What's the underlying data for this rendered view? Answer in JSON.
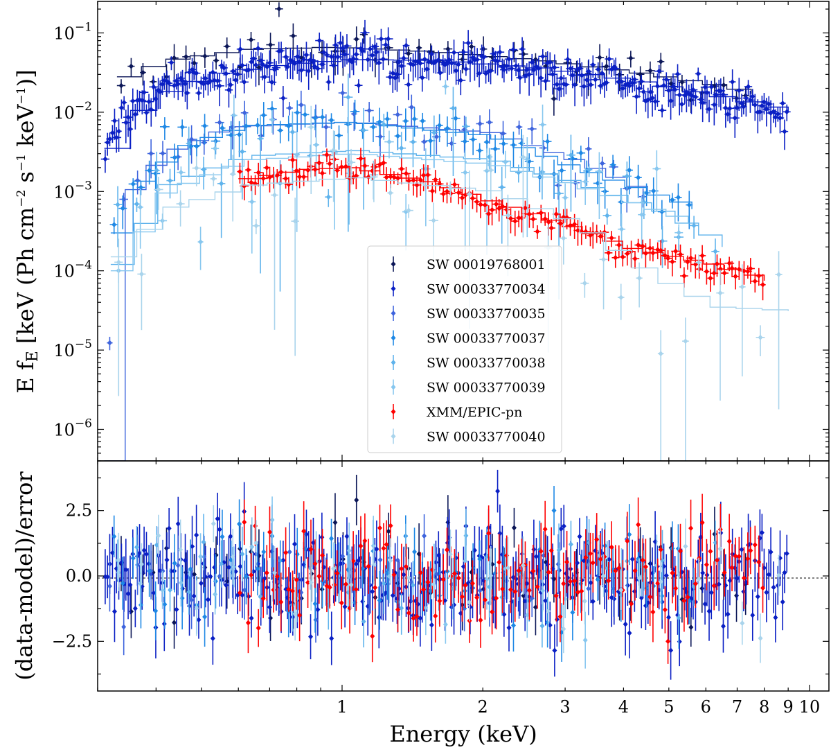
{
  "chart_data": [
    {
      "type": "scatter",
      "panel": "spectrum",
      "ylabel": "E f_E [keV (Ph cm^-2 s^-1 keV^-1)]",
      "xscale": "log",
      "yscale": "log",
      "xlim": [
        0.3,
        11
      ],
      "ylim": [
        4e-07,
        0.25
      ],
      "yticks": [
        {
          "value": 1e-06,
          "base": "10",
          "exp": "−6"
        },
        {
          "value": 1e-05,
          "base": "10",
          "exp": "−5"
        },
        {
          "value": 0.0001,
          "base": "10",
          "exp": "−4"
        },
        {
          "value": 0.001,
          "base": "10",
          "exp": "−3"
        },
        {
          "value": 0.01,
          "base": "10",
          "exp": "−2"
        },
        {
          "value": 0.1,
          "base": "10",
          "exp": "−1"
        }
      ],
      "legend_position": "center",
      "series": [
        {
          "name": "SW 00019768001",
          "color": "#0b1657",
          "norm": 0.058,
          "logSlope": -0.55,
          "scatter": 0.14,
          "xmin": 0.33,
          "xmax": 7.5,
          "n": 60,
          "seed": 11,
          "model": [
            [
              0.33,
              0.028
            ],
            [
              0.4,
              0.045
            ],
            [
              0.6,
              0.062
            ],
            [
              0.9,
              0.066
            ],
            [
              1.5,
              0.058
            ],
            [
              2.5,
              0.045
            ],
            [
              4,
              0.032
            ],
            [
              6,
              0.022
            ],
            [
              7.5,
              0.017
            ]
          ]
        },
        {
          "name": "SW 00033770034",
          "color": "#0a1fc4",
          "norm": 0.046,
          "logSlope": -0.6,
          "scatter": 0.12,
          "xmin": 0.31,
          "xmax": 9.0,
          "n": 300,
          "seed": 23,
          "model": [
            [
              0.31,
              0.0035
            ],
            [
              0.34,
              0.009
            ],
            [
              0.4,
              0.018
            ],
            [
              0.5,
              0.03
            ],
            [
              0.7,
              0.04
            ],
            [
              1,
              0.046
            ],
            [
              1.5,
              0.045
            ],
            [
              2.5,
              0.036
            ],
            [
              4,
              0.025
            ],
            [
              6,
              0.016
            ],
            [
              9,
              0.01
            ]
          ]
        },
        {
          "name": "SW 00033770035",
          "color": "#3e64dd",
          "norm": 0.0068,
          "logSlope": -0.55,
          "scatter": 0.14,
          "xmin": 0.31,
          "xmax": 4.5,
          "n": 40,
          "seed": 37,
          "model": [
            [
              0.31,
              4e-07
            ],
            [
              0.33,
              0.0008
            ],
            [
              0.4,
              0.003
            ],
            [
              0.55,
              0.0065
            ],
            [
              1,
              0.0075
            ],
            [
              2,
              0.0055
            ],
            [
              3,
              0.0025
            ],
            [
              4.5,
              0.0009
            ]
          ]
        },
        {
          "name": "SW 00033770037",
          "color": "#1e88e5",
          "norm": 0.0068,
          "logSlope": -0.6,
          "scatter": 0.14,
          "xmin": 0.32,
          "xmax": 5.6,
          "n": 70,
          "seed": 41,
          "model": [
            [
              0.32,
              0.0003
            ],
            [
              0.36,
              0.0015
            ],
            [
              0.45,
              0.004
            ],
            [
              0.6,
              0.0068
            ],
            [
              1,
              0.0075
            ],
            [
              2,
              0.005
            ],
            [
              3,
              0.002
            ],
            [
              4.5,
              0.0009
            ],
            [
              5.6,
              0.0006
            ]
          ]
        },
        {
          "name": "SW 00033770038",
          "color": "#5fb3ec",
          "norm": 0.0033,
          "logSlope": -0.5,
          "scatter": 0.35,
          "xmin": 0.32,
          "xmax": 6.5,
          "n": 35,
          "seed": 53,
          "model": [
            [
              0.32,
              0.00012
            ],
            [
              0.4,
              0.0012
            ],
            [
              0.6,
              0.0028
            ],
            [
              1,
              0.0033
            ],
            [
              2,
              0.0025
            ],
            [
              3,
              0.0013
            ],
            [
              4.5,
              0.0006
            ],
            [
              6.5,
              0.0002
            ]
          ]
        },
        {
          "name": "SW 00033770039",
          "color": "#87c7ef",
          "norm": 0.003,
          "logSlope": -0.5,
          "scatter": 0.35,
          "xmin": 0.32,
          "xmax": 5.5,
          "n": 30,
          "seed": 67,
          "model": [
            [
              0.32,
              0.0001
            ],
            [
              0.4,
              0.001
            ],
            [
              0.6,
              0.0025
            ],
            [
              1,
              0.003
            ],
            [
              2,
              0.0022
            ],
            [
              3,
              0.0012
            ],
            [
              5.5,
              0.0004
            ]
          ]
        },
        {
          "name": "XMM/EPIC-pn",
          "color": "#ff0000",
          "norm": 0.0019,
          "logSlope": -1.0,
          "scatter": 0.08,
          "xmin": 0.6,
          "xmax": 8.0,
          "n": 140,
          "seed": 79,
          "model": [
            [
              0.6,
              0.00145
            ],
            [
              0.8,
              0.0019
            ],
            [
              1,
              0.002
            ],
            [
              1.5,
              0.0013
            ],
            [
              2,
              0.00075
            ],
            [
              3,
              0.00035
            ],
            [
              4,
              0.00019
            ],
            [
              6,
              0.00012
            ],
            [
              8,
              7.5e-05
            ]
          ]
        },
        {
          "name": "SW 00033770040",
          "color": "#a9d4ec",
          "norm": 0.0015,
          "logSlope": -0.7,
          "scatter": 0.45,
          "xmin": 0.32,
          "xmax": 9.0,
          "n": 35,
          "seed": 83,
          "model": [
            [
              0.32,
              0.00015
            ],
            [
              0.4,
              0.0006
            ],
            [
              0.6,
              0.0012
            ],
            [
              1,
              0.0015
            ],
            [
              2,
              0.001
            ],
            [
              3,
              0.0004
            ],
            [
              4.5,
              8e-05
            ],
            [
              6,
              3.5e-05
            ],
            [
              9,
              3.1e-05
            ]
          ]
        }
      ]
    },
    {
      "type": "scatter",
      "panel": "residuals",
      "xlabel": "Energy (keV)",
      "ylabel": "(data-model)/error",
      "xscale": "log",
      "xlim": [
        0.3,
        11
      ],
      "ylim": [
        -4.4,
        4.4
      ],
      "yticks": [
        "−2.5",
        "0.0",
        "2.5"
      ],
      "ytick_values": [
        -2.5,
        0.0,
        2.5
      ],
      "xticks": [
        "1",
        "2",
        "3",
        "4",
        "5",
        "6",
        "7",
        "8",
        "9",
        "10"
      ],
      "xtick_values": [
        1,
        2,
        3,
        4,
        5,
        6,
        7,
        8,
        9,
        10
      ],
      "zero_line": true
    }
  ]
}
